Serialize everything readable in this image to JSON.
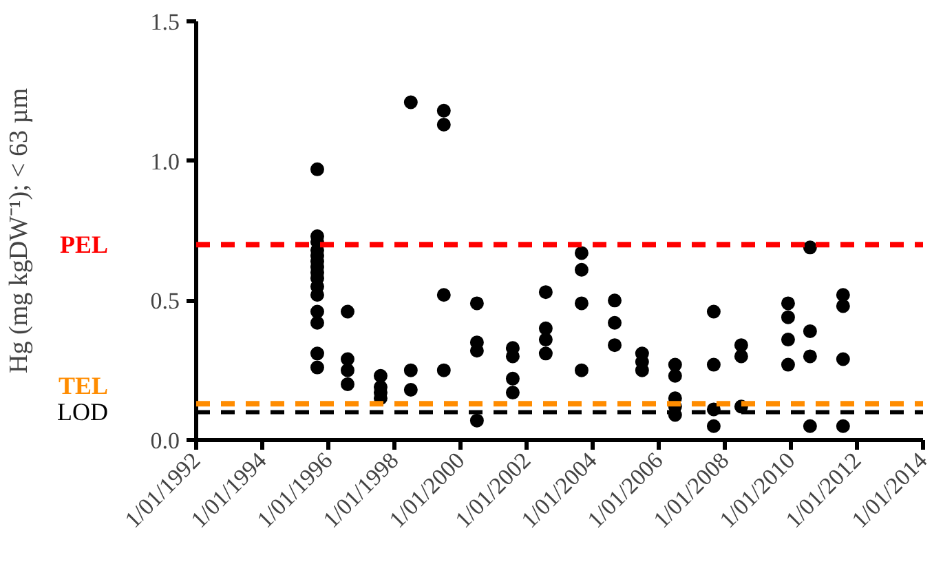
{
  "chart_data": {
    "type": "scatter",
    "ylabel": "Hg (mg kgDW⁻¹); < 63 µm",
    "marker": "circle",
    "grid": false,
    "xlim": [
      "1992-01-01",
      "2014-01-01"
    ],
    "xticks": [
      {
        "value": "1992-01-01",
        "label": "1/01/1992"
      },
      {
        "value": "1994-01-01",
        "label": "1/01/1994"
      },
      {
        "value": "1996-01-01",
        "label": "1/01/1996"
      },
      {
        "value": "1998-01-01",
        "label": "1/01/1998"
      },
      {
        "value": "2000-01-01",
        "label": "1/01/2000"
      },
      {
        "value": "2002-01-01",
        "label": "1/01/2002"
      },
      {
        "value": "2004-01-01",
        "label": "1/01/2004"
      },
      {
        "value": "2006-01-01",
        "label": "1/01/2006"
      },
      {
        "value": "2008-01-01",
        "label": "1/01/2008"
      },
      {
        "value": "2010-01-01",
        "label": "1/01/2010"
      },
      {
        "value": "2012-01-01",
        "label": "1/01/2012"
      },
      {
        "value": "2014-01-01",
        "label": "1/01/2014"
      }
    ],
    "ylim": [
      0,
      1.5
    ],
    "yticks": [
      {
        "value": 0,
        "label": "0.0"
      },
      0.5,
      {
        "value": 1,
        "label": "1.0"
      },
      1.5
    ],
    "series": [
      {
        "color": "#000000",
        "x": [
          "1995-09",
          "1995-09",
          "1995-09",
          "1995-09",
          "1995-09",
          "1995-09",
          "1995-09",
          "1995-09",
          "1995-09",
          "1995-09",
          "1995-09",
          "1995-09",
          "1995-09",
          "1995-09",
          "1995-09",
          "1996-08",
          "1996-08",
          "1996-08",
          "1996-08",
          "1997-08",
          "1997-08",
          "1997-08",
          "1997-08",
          "1998-07",
          "1998-07",
          "1998-07",
          "1999-07",
          "1999-07",
          "1999-07",
          "1999-07",
          "2000-07",
          "2000-07",
          "2000-07",
          "2000-07",
          "2001-08",
          "2001-08",
          "2001-08",
          "2001-08",
          "2002-08",
          "2002-08",
          "2002-08",
          "2002-08",
          "2003-09",
          "2003-09",
          "2003-09",
          "2003-09",
          "2004-09",
          "2004-09",
          "2004-09",
          "2005-07",
          "2005-07",
          "2005-07",
          "2006-07",
          "2006-07",
          "2006-07",
          "2006-07",
          "2006-07",
          "2007-09",
          "2007-09",
          "2007-09",
          "2007-09",
          "2008-07",
          "2008-07",
          "2008-07",
          "2009-12",
          "2009-12",
          "2009-12",
          "2009-12",
          "2010-08",
          "2010-08",
          "2010-08",
          "2010-08",
          "2011-08",
          "2011-08",
          "2011-08",
          "2011-08"
        ],
        "values": [
          0.97,
          0.73,
          0.71,
          0.68,
          0.66,
          0.64,
          0.62,
          0.6,
          0.58,
          0.55,
          0.52,
          0.46,
          0.42,
          0.31,
          0.26,
          0.46,
          0.29,
          0.25,
          0.2,
          0.23,
          0.19,
          0.17,
          0.15,
          1.21,
          0.25,
          0.18,
          1.18,
          1.13,
          0.52,
          0.25,
          0.49,
          0.35,
          0.32,
          0.07,
          0.33,
          0.3,
          0.22,
          0.17,
          0.53,
          0.4,
          0.36,
          0.31,
          0.67,
          0.61,
          0.49,
          0.25,
          0.5,
          0.42,
          0.34,
          0.31,
          0.28,
          0.25,
          0.27,
          0.23,
          0.15,
          0.12,
          0.09,
          0.46,
          0.27,
          0.11,
          0.05,
          0.34,
          0.3,
          0.12,
          0.49,
          0.44,
          0.36,
          0.27,
          0.69,
          0.39,
          0.3,
          0.05,
          0.52,
          0.48,
          0.29,
          0.05
        ]
      }
    ],
    "ref_lines": [
      {
        "axis": "y",
        "value": 0.7,
        "label": "PEL",
        "color": "#ff0000",
        "line_style": "dashed"
      },
      {
        "axis": "y",
        "value": 0.13,
        "label": "TEL",
        "color": "#ff8c00",
        "line_style": "dashed"
      },
      {
        "axis": "y",
        "value": 0.1,
        "label": "LOD",
        "color": "#000000",
        "line_style": "dashed"
      }
    ]
  }
}
